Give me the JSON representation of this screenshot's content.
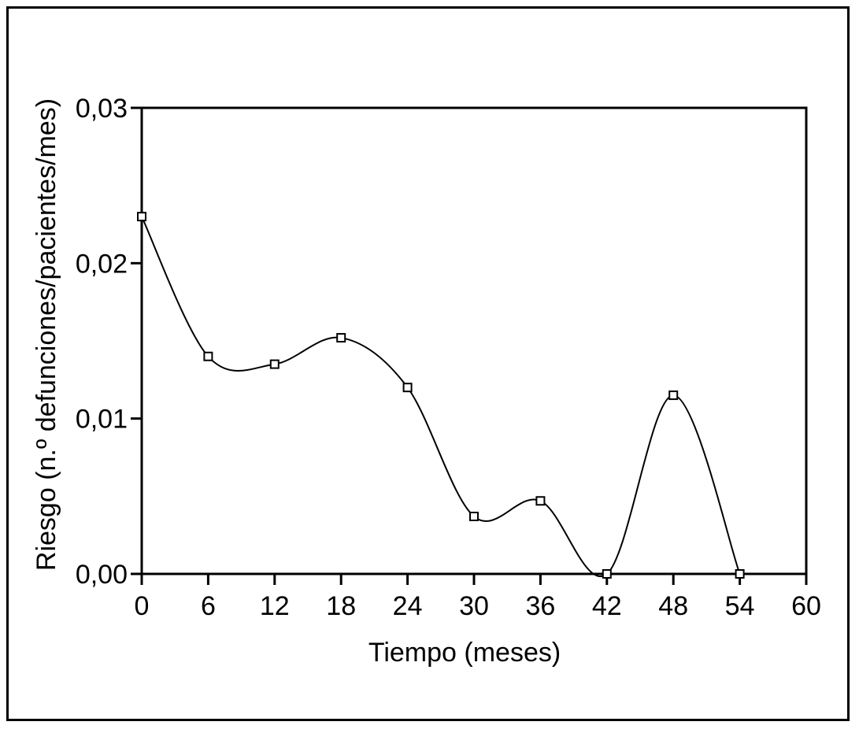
{
  "chart_data": {
    "type": "line",
    "xlabel": "Tiempo (meses)",
    "ylabel": "Riesgo (n.º defunciones/pacientes/mes)",
    "xlim": [
      0,
      60
    ],
    "ylim": [
      0,
      0.03
    ],
    "x_ticks": [
      0,
      6,
      12,
      18,
      24,
      30,
      36,
      42,
      48,
      54,
      60
    ],
    "x_tick_labels": [
      "0",
      "6",
      "12",
      "18",
      "24",
      "30",
      "36",
      "42",
      "48",
      "54",
      "60"
    ],
    "y_ticks": [
      0,
      0.01,
      0.02,
      0.03
    ],
    "y_tick_labels": [
      "0,00",
      "0,01",
      "0,02",
      "0,03"
    ],
    "grid": false,
    "legend": "none",
    "series": [
      {
        "marker": "open-square",
        "smooth": true,
        "x": [
          0,
          6,
          12,
          18,
          24,
          30,
          36,
          42,
          48,
          54
        ],
        "values": [
          0.023,
          0.014,
          0.0135,
          0.0152,
          0.012,
          0.0037,
          0.0047,
          0.0,
          0.0115,
          0.0
        ]
      }
    ]
  }
}
